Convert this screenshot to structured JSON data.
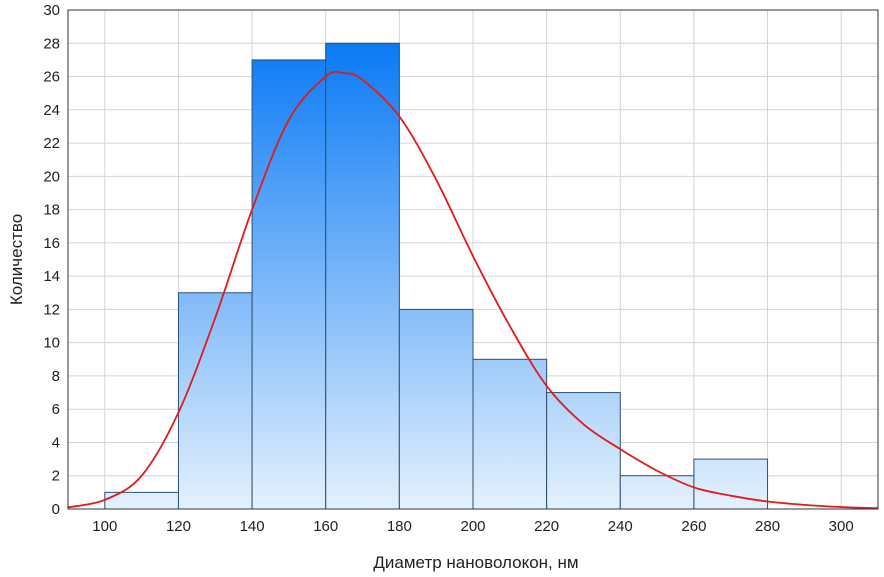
{
  "chart_data": {
    "type": "bar",
    "subtype": "histogram-with-normal-fit",
    "xlabel": "Диаметр нановолокон, нм",
    "ylabel": "Количество",
    "xlim": [
      90,
      310
    ],
    "ylim": [
      0,
      30
    ],
    "x_ticks": [
      100,
      120,
      140,
      160,
      180,
      200,
      220,
      240,
      260,
      280,
      300
    ],
    "y_ticks": [
      0,
      2,
      4,
      6,
      8,
      10,
      12,
      14,
      16,
      18,
      20,
      22,
      24,
      26,
      28,
      30
    ],
    "grid": true,
    "bins": [
      {
        "from": 100,
        "to": 120,
        "count": 1
      },
      {
        "from": 120,
        "to": 140,
        "count": 13
      },
      {
        "from": 140,
        "to": 160,
        "count": 27
      },
      {
        "from": 160,
        "to": 180,
        "count": 28
      },
      {
        "from": 180,
        "to": 200,
        "count": 12
      },
      {
        "from": 200,
        "to": 220,
        "count": 9
      },
      {
        "from": 220,
        "to": 240,
        "count": 7
      },
      {
        "from": 240,
        "to": 260,
        "count": 2
      },
      {
        "from": 260,
        "to": 280,
        "count": 3
      }
    ],
    "fit_curve": {
      "peak_x": 165,
      "peak_y": 26.2,
      "points": [
        [
          90,
          0.1
        ],
        [
          100,
          0.55
        ],
        [
          110,
          2.0
        ],
        [
          120,
          5.8
        ],
        [
          130,
          11.5
        ],
        [
          140,
          18.0
        ],
        [
          150,
          23.4
        ],
        [
          160,
          26.0
        ],
        [
          165,
          26.2
        ],
        [
          170,
          25.8
        ],
        [
          180,
          23.6
        ],
        [
          190,
          19.8
        ],
        [
          200,
          15.2
        ],
        [
          210,
          11.0
        ],
        [
          220,
          7.4
        ],
        [
          230,
          5.1
        ],
        [
          240,
          3.6
        ],
        [
          250,
          2.3
        ],
        [
          260,
          1.3
        ],
        [
          270,
          0.8
        ],
        [
          280,
          0.45
        ],
        [
          290,
          0.25
        ],
        [
          300,
          0.12
        ],
        [
          310,
          0.05
        ]
      ]
    },
    "colors": {
      "bar_top": "#0a7af5",
      "bar_bottom": "#e4f1fd",
      "bar_edge": "#2f4f6f",
      "curve": "#e01b1b",
      "grid": "#d4d4d4"
    }
  }
}
